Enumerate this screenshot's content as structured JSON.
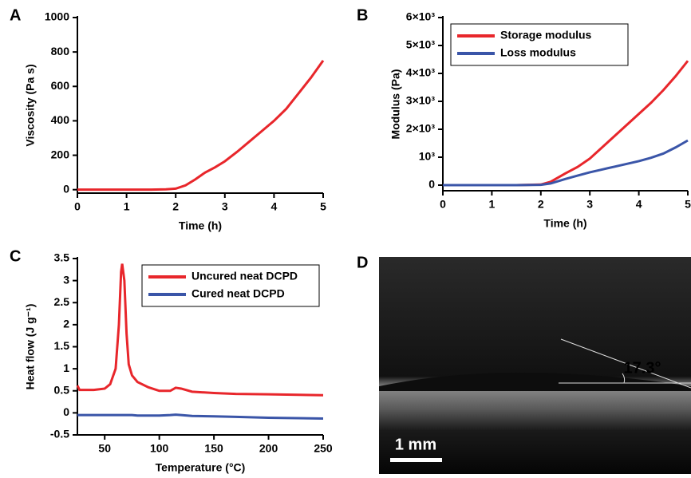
{
  "chart_data": [
    {
      "type": "line",
      "panel": "A",
      "xlabel": "Time (h)",
      "ylabel": "Viscosity (Pa s)",
      "x": [
        0,
        0.5,
        1,
        1.5,
        1.8,
        2.0,
        2.2,
        2.4,
        2.6,
        2.8,
        3.0,
        3.25,
        3.5,
        3.75,
        4.0,
        4.25,
        4.5,
        4.75,
        5.0
      ],
      "values": [
        0,
        0,
        0,
        0,
        2,
        6,
        25,
        60,
        100,
        130,
        165,
        220,
        280,
        340,
        400,
        470,
        560,
        650,
        750
      ],
      "color": "#e8262b",
      "xlim": [
        0,
        5
      ],
      "ylim": [
        -20,
        1000
      ],
      "xticks": [
        0,
        1,
        2,
        3,
        4,
        5
      ],
      "yticks": [
        0,
        200,
        400,
        600,
        800,
        1000
      ]
    },
    {
      "type": "line",
      "panel": "B",
      "xlabel": "Time (h)",
      "ylabel": "Modulus (Pa)",
      "x": [
        0,
        0.5,
        1,
        1.5,
        2.0,
        2.2,
        2.5,
        2.75,
        3.0,
        3.25,
        3.5,
        3.75,
        4.0,
        4.25,
        4.5,
        4.75,
        5.0
      ],
      "series": [
        {
          "name": "Storage modulus",
          "color": "#e8262b",
          "values": [
            0,
            0,
            0,
            0,
            20,
            120,
            420,
            650,
            950,
            1350,
            1750,
            2150,
            2550,
            2950,
            3400,
            3900,
            4450
          ]
        },
        {
          "name": "Loss modulus",
          "color": "#3a55a8",
          "values": [
            0,
            0,
            0,
            0,
            10,
            60,
            220,
            340,
            460,
            560,
            660,
            760,
            860,
            980,
            1130,
            1350,
            1600
          ]
        }
      ],
      "legend": "upper-left",
      "xlim": [
        0,
        5
      ],
      "ylim": [
        -200,
        6000
      ],
      "xticks": [
        0,
        1,
        2,
        3,
        4,
        5
      ],
      "yticks": [
        0,
        {
          "value": 1000,
          "label": "10³"
        },
        {
          "value": 2000,
          "label": "2×10³"
        },
        {
          "value": 3000,
          "label": "3×10³"
        },
        {
          "value": 4000,
          "label": "4×10³"
        },
        {
          "value": 5000,
          "label": "5×10³"
        },
        {
          "value": 6000,
          "label": "6×10³"
        }
      ]
    },
    {
      "type": "line",
      "panel": "C",
      "xlabel": "Temperature (°C)",
      "ylabel": "Heat flow (J g⁻¹)",
      "x": [
        25,
        27,
        40,
        50,
        55,
        60,
        63,
        65,
        66,
        68,
        70,
        72,
        75,
        80,
        90,
        100,
        110,
        115,
        120,
        130,
        150,
        170,
        200,
        250
      ],
      "series": [
        {
          "name": "Uncured neat DCPD",
          "color": "#e8262b",
          "values": [
            0.62,
            0.52,
            0.52,
            0.55,
            0.65,
            1.0,
            2.0,
            3.2,
            3.38,
            3.0,
            1.8,
            1.1,
            0.85,
            0.7,
            0.58,
            0.5,
            0.5,
            0.57,
            0.55,
            0.48,
            0.45,
            0.43,
            0.42,
            0.4
          ]
        },
        {
          "name": "Cured neat DCPD",
          "color": "#3a55a8",
          "values": [
            -0.05,
            -0.05,
            -0.05,
            -0.05,
            -0.05,
            -0.05,
            -0.05,
            -0.05,
            -0.05,
            -0.05,
            -0.05,
            -0.05,
            -0.05,
            -0.06,
            -0.06,
            -0.06,
            -0.05,
            -0.04,
            -0.05,
            -0.07,
            -0.08,
            -0.09,
            -0.11,
            -0.13
          ]
        }
      ],
      "legend": "upper-right",
      "xlim": [
        25,
        250
      ],
      "ylim": [
        -0.5,
        3.5
      ],
      "xticks": [
        50,
        100,
        150,
        200,
        250
      ],
      "yticks": [
        -0.5,
        0,
        0.5,
        1,
        1.5,
        2,
        2.5,
        3,
        3.5
      ]
    }
  ],
  "image_panel": {
    "panel": "D",
    "angle_label": "17.3°",
    "scale_bar": "1 mm"
  }
}
